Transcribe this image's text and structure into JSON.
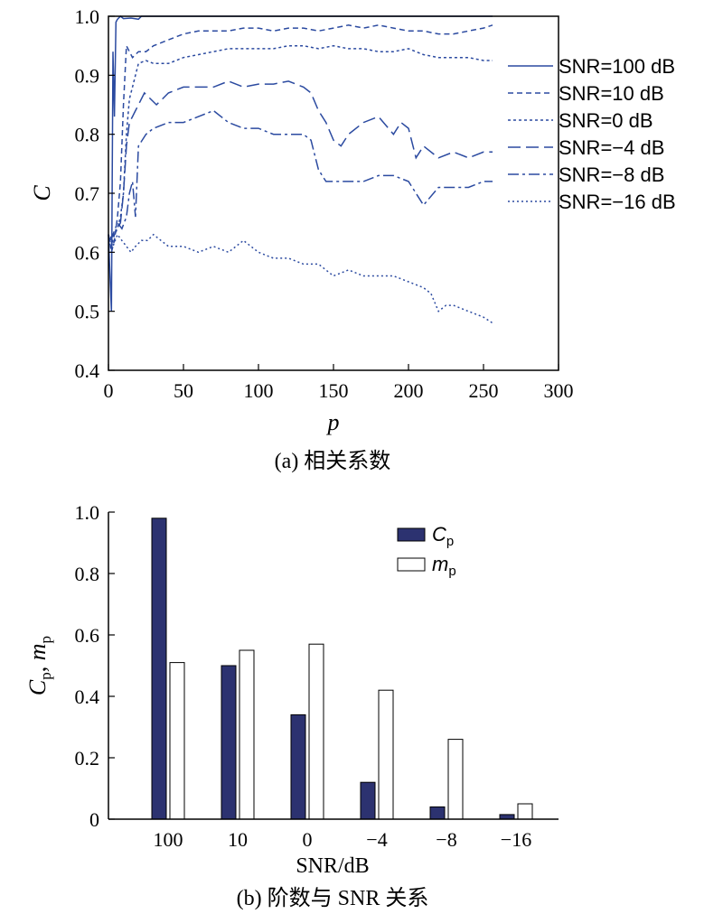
{
  "chart_data": [
    {
      "type": "line",
      "caption": "(a) 相关系数",
      "xlabel": "p",
      "ylabel": "C",
      "xlim": [
        0,
        300
      ],
      "ylim": [
        0.4,
        1.0
      ],
      "xticks": [
        "0",
        "50",
        "100",
        "150",
        "200",
        "250",
        "300"
      ],
      "yticks": [
        "0.4",
        "0.5",
        "0.6",
        "0.7",
        "0.8",
        "0.9",
        "1.0"
      ],
      "legend_position": "right",
      "color": "#2b4aa0",
      "series": [
        {
          "name": "SNR=100 dB",
          "dash": "solid",
          "x": [
            0,
            1,
            2,
            3,
            4,
            5,
            6,
            8,
            10,
            15,
            20,
            22,
            30,
            50,
            100,
            150,
            200,
            256
          ],
          "y": [
            0.63,
            0.56,
            0.5,
            0.94,
            0.83,
            0.99,
            0.995,
            1.0,
            0.996,
            0.997,
            0.995,
            1.0,
            1.0,
            1.0,
            1.0,
            1.0,
            1.0,
            1.0
          ]
        },
        {
          "name": "SNR=10 dB",
          "dash": "6,4",
          "x": [
            0,
            2,
            4,
            6,
            8,
            10,
            12,
            14,
            16,
            20,
            25,
            30,
            40,
            50,
            60,
            70,
            80,
            90,
            100,
            110,
            120,
            130,
            140,
            150,
            160,
            170,
            180,
            190,
            200,
            210,
            220,
            230,
            240,
            250,
            256
          ],
          "y": [
            0.63,
            0.6,
            0.62,
            0.66,
            0.72,
            0.85,
            0.95,
            0.94,
            0.93,
            0.94,
            0.94,
            0.95,
            0.96,
            0.97,
            0.975,
            0.975,
            0.975,
            0.98,
            0.98,
            0.975,
            0.98,
            0.98,
            0.975,
            0.98,
            0.985,
            0.98,
            0.985,
            0.98,
            0.975,
            0.975,
            0.97,
            0.97,
            0.975,
            0.98,
            0.985
          ]
        },
        {
          "name": "SNR=0 dB",
          "dash": "3,3",
          "x": [
            0,
            2,
            4,
            6,
            8,
            10,
            12,
            14,
            16,
            18,
            20,
            25,
            30,
            40,
            50,
            60,
            70,
            80,
            90,
            100,
            110,
            120,
            130,
            140,
            150,
            160,
            170,
            180,
            190,
            200,
            210,
            220,
            230,
            240,
            250,
            256
          ],
          "y": [
            0.63,
            0.61,
            0.63,
            0.64,
            0.66,
            0.7,
            0.8,
            0.86,
            0.88,
            0.9,
            0.92,
            0.925,
            0.92,
            0.92,
            0.93,
            0.935,
            0.94,
            0.945,
            0.945,
            0.945,
            0.945,
            0.95,
            0.95,
            0.945,
            0.95,
            0.945,
            0.945,
            0.94,
            0.94,
            0.945,
            0.935,
            0.93,
            0.93,
            0.93,
            0.925,
            0.925
          ]
        },
        {
          "name": "SNR=−4 dB",
          "dash": "14,6",
          "x": [
            0,
            4,
            8,
            10,
            12,
            14,
            16,
            18,
            20,
            24,
            28,
            32,
            36,
            40,
            50,
            60,
            70,
            80,
            90,
            100,
            110,
            120,
            130,
            135,
            140,
            145,
            150,
            155,
            160,
            170,
            180,
            190,
            195,
            200,
            205,
            210,
            220,
            230,
            240,
            250,
            256
          ],
          "y": [
            0.62,
            0.63,
            0.65,
            0.7,
            0.78,
            0.82,
            0.83,
            0.84,
            0.85,
            0.87,
            0.86,
            0.85,
            0.86,
            0.87,
            0.88,
            0.88,
            0.88,
            0.89,
            0.88,
            0.885,
            0.885,
            0.89,
            0.88,
            0.87,
            0.84,
            0.82,
            0.79,
            0.78,
            0.8,
            0.82,
            0.83,
            0.8,
            0.82,
            0.81,
            0.76,
            0.78,
            0.76,
            0.77,
            0.76,
            0.77,
            0.77
          ]
        },
        {
          "name": "SNR=−8 dB",
          "dash": "12,4,3,4",
          "x": [
            0,
            3,
            6,
            9,
            12,
            14,
            16,
            18,
            20,
            25,
            30,
            40,
            50,
            60,
            70,
            80,
            90,
            100,
            110,
            120,
            130,
            135,
            140,
            145,
            150,
            160,
            170,
            180,
            190,
            200,
            205,
            210,
            220,
            230,
            240,
            250,
            256
          ],
          "y": [
            0.62,
            0.63,
            0.65,
            0.64,
            0.66,
            0.7,
            0.72,
            0.66,
            0.78,
            0.8,
            0.81,
            0.82,
            0.82,
            0.83,
            0.84,
            0.82,
            0.81,
            0.81,
            0.8,
            0.8,
            0.8,
            0.79,
            0.74,
            0.72,
            0.72,
            0.72,
            0.72,
            0.73,
            0.73,
            0.72,
            0.7,
            0.68,
            0.71,
            0.71,
            0.71,
            0.72,
            0.72
          ]
        },
        {
          "name": "SNR=−16 dB",
          "dash": "2,3",
          "x": [
            0,
            3,
            6,
            9,
            12,
            15,
            18,
            22,
            26,
            30,
            35,
            40,
            50,
            60,
            70,
            80,
            90,
            100,
            110,
            120,
            130,
            140,
            150,
            160,
            170,
            180,
            190,
            200,
            210,
            215,
            220,
            225,
            230,
            240,
            250,
            256
          ],
          "y": [
            0.63,
            0.61,
            0.63,
            0.62,
            0.61,
            0.6,
            0.61,
            0.62,
            0.62,
            0.63,
            0.62,
            0.61,
            0.61,
            0.6,
            0.61,
            0.6,
            0.62,
            0.6,
            0.59,
            0.59,
            0.58,
            0.58,
            0.56,
            0.57,
            0.56,
            0.56,
            0.56,
            0.55,
            0.54,
            0.53,
            0.5,
            0.51,
            0.51,
            0.5,
            0.49,
            0.48
          ]
        }
      ]
    },
    {
      "type": "bar",
      "caption": "(b) 阶数与 SNR 关系",
      "xlabel": "SNR/dB",
      "ylabel_parts": {
        "c": "C",
        "c_sub": "p",
        "sep": ", ",
        "m": "m",
        "m_sub": "p"
      },
      "ylim": [
        0,
        1.0
      ],
      "yticks": [
        "0",
        "0.2",
        "0.4",
        "0.6",
        "0.8",
        "1.0"
      ],
      "categories": [
        "100",
        "10",
        "0",
        "−4",
        "−8",
        "−16"
      ],
      "legend_position": "top-right",
      "series": [
        {
          "name_main": "C",
          "name_sub": "p",
          "color": "#2c3270",
          "values": [
            0.98,
            0.5,
            0.34,
            0.12,
            0.04,
            0.015
          ]
        },
        {
          "name_main": "m",
          "name_sub": "p",
          "color": "#ffffff",
          "values": [
            0.51,
            0.55,
            0.57,
            0.42,
            0.26,
            0.05
          ]
        }
      ]
    }
  ]
}
